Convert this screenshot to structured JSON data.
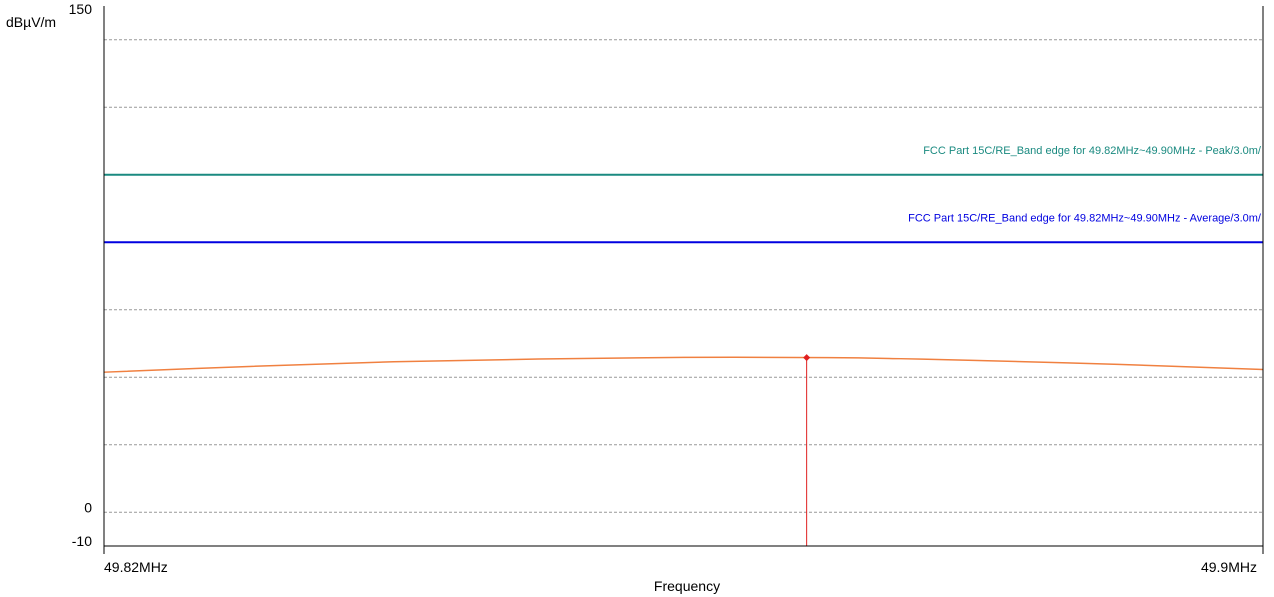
{
  "colors": {
    "background": "#ffffff",
    "frame": "#000000",
    "grid": "#999999",
    "peak_limit": "#1a8a80",
    "average_limit": "#0000e0",
    "trace": "#f08040",
    "marker": "#e02020"
  },
  "chart_data": {
    "type": "line",
    "title": "",
    "ylabel": "dBµV/m",
    "xlabel": "Frequency",
    "xlim": [
      49.82,
      49.9
    ],
    "ylim": [
      -10,
      150
    ],
    "x_tick_labels": [
      "49.82MHz",
      "49.9MHz"
    ],
    "y_tick_labels": [
      "150",
      "0",
      "-10"
    ],
    "y_ticks": [
      150,
      0,
      -10
    ],
    "gridlines_y": [
      0,
      20,
      40,
      60,
      80,
      100,
      120,
      140
    ],
    "grid": true,
    "limit_lines": [
      {
        "name": "FCC Part 15C/RE_Band edge for 49.82MHz~49.90MHz  - Peak/3.0m/",
        "value": 100,
        "color": "#1a8a80"
      },
      {
        "name": "FCC Part 15C/RE_Band edge for 49.82MHz~49.90MHz  - Average/3.0m/",
        "value": 80,
        "color": "#0000e0"
      }
    ],
    "series": [
      {
        "color": "#f08040",
        "x": [
          49.82,
          49.83,
          49.84,
          49.85,
          49.86,
          49.87,
          49.875,
          49.88,
          49.89,
          49.9
        ],
        "y": [
          41.5,
          43.2,
          44.6,
          45.4,
          45.9,
          45.8,
          45.5,
          45.0,
          43.8,
          42.3
        ]
      }
    ],
    "markers": [
      {
        "x": 49.8685,
        "y": 45.8,
        "color": "#e02020"
      }
    ]
  }
}
